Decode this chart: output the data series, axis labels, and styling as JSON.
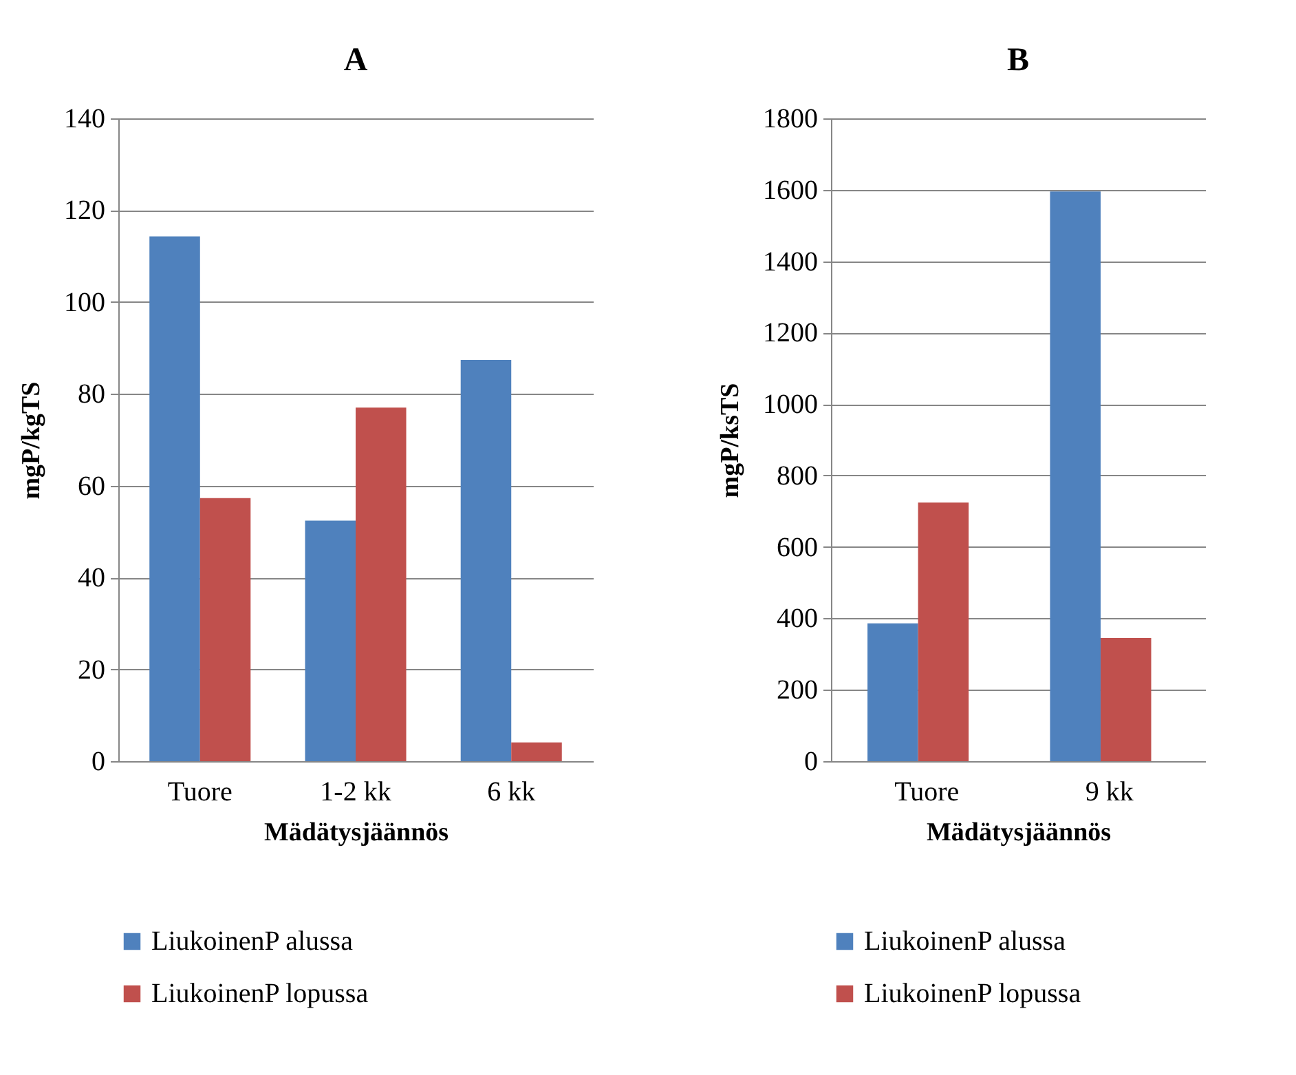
{
  "chart_data": [
    {
      "type": "bar",
      "title": "A",
      "xlabel": "Mädätysjäännös",
      "ylabel": "mgP/kgTS",
      "categories": [
        "Tuore",
        "1-2 kk",
        "6 kk"
      ],
      "series": [
        {
          "name": "LiukoinenP alussa",
          "color": "#4f81bd",
          "values": [
            114.3,
            52.4,
            87.4
          ]
        },
        {
          "name": "LiukoinenP lopussa",
          "color": "#c0504d",
          "values": [
            57.3,
            77,
            4.1
          ]
        }
      ],
      "ylim": [
        0,
        140
      ],
      "yticks": [
        0,
        20,
        40,
        60,
        80,
        100,
        120,
        140
      ],
      "grid": "y",
      "legend": "bottom"
    },
    {
      "type": "bar",
      "title": "B",
      "xlabel": "Mädätysjäännös",
      "ylabel": "mgP/ksTS",
      "categories": [
        "Tuore",
        "9 kk"
      ],
      "series": [
        {
          "name": "LiukoinenP alussa",
          "color": "#4f81bd",
          "values": [
            386,
            1595
          ]
        },
        {
          "name": "LiukoinenP lopussa",
          "color": "#c0504d",
          "values": [
            724,
            345
          ]
        }
      ],
      "ylim": [
        0,
        1800
      ],
      "yticks": [
        0,
        200,
        400,
        600,
        800,
        1000,
        1200,
        1400,
        1600,
        1800
      ],
      "grid": "y",
      "legend": "bottom"
    }
  ]
}
